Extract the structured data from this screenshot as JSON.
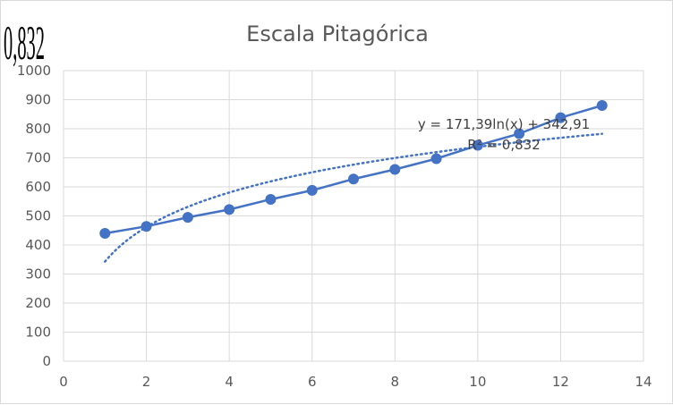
{
  "chart_data": {
    "type": "scatter",
    "title": "Escala Pitagórica",
    "xlim": [
      0,
      14
    ],
    "ylim": [
      0,
      1000
    ],
    "x_ticks": [
      "0",
      "2",
      "4",
      "6",
      "8",
      "10",
      "12",
      "14"
    ],
    "y_ticks": [
      "0",
      "100",
      "200",
      "300",
      "400",
      "500",
      "600",
      "700",
      "800",
      "900",
      "1000"
    ],
    "grid": true,
    "legend": "none",
    "series": [
      {
        "x": [
          1,
          2,
          3,
          4,
          5,
          6,
          7,
          8,
          9,
          10,
          11,
          12,
          13
        ],
        "y": [
          440,
          464,
          495,
          522,
          557,
          588,
          627,
          660,
          697,
          743,
          783,
          838,
          880
        ],
        "color": "#4472c4",
        "style": "line-with-markers"
      }
    ],
    "trendline": {
      "kind": "logarithmic",
      "a": 171.39,
      "b": 342.91,
      "x_range": [
        1,
        13
      ],
      "color": "#4472c4",
      "style": "dotted"
    },
    "annotations": {
      "equation": "y = 171,39ln(x) + 342,91",
      "r_squared": "R² = 0,832"
    },
    "side_label": "0,832"
  }
}
